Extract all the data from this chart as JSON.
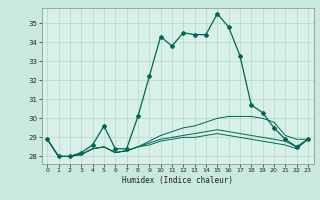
{
  "title": "",
  "xlabel": "Humidex (Indice chaleur)",
  "ylabel": "",
  "background_color": "#c8e8e0",
  "plot_bg_color": "#d8f0e8",
  "grid_color": "#b0d8cc",
  "line_color": "#006655",
  "xlim": [
    -0.5,
    23.5
  ],
  "ylim": [
    27.6,
    35.8
  ],
  "yticks": [
    28,
    29,
    30,
    31,
    32,
    33,
    34,
    35
  ],
  "xticks": [
    0,
    1,
    2,
    3,
    4,
    5,
    6,
    7,
    8,
    9,
    10,
    11,
    12,
    13,
    14,
    15,
    16,
    17,
    18,
    19,
    20,
    21,
    22,
    23
  ],
  "series": [
    [
      28.9,
      28.0,
      28.0,
      28.2,
      28.6,
      29.6,
      28.4,
      28.4,
      30.1,
      32.2,
      34.3,
      33.8,
      34.5,
      34.4,
      34.4,
      35.5,
      34.8,
      33.3,
      30.7,
      30.3,
      29.5,
      28.9,
      28.5,
      28.9
    ],
    [
      28.9,
      28.0,
      28.0,
      28.1,
      28.4,
      28.5,
      28.2,
      28.3,
      28.5,
      28.8,
      29.1,
      29.3,
      29.5,
      29.6,
      29.8,
      30.0,
      30.1,
      30.1,
      30.1,
      30.0,
      29.8,
      29.1,
      28.9,
      28.9
    ],
    [
      28.9,
      28.0,
      28.0,
      28.1,
      28.4,
      28.5,
      28.2,
      28.3,
      28.5,
      28.7,
      28.9,
      29.0,
      29.1,
      29.2,
      29.3,
      29.4,
      29.3,
      29.2,
      29.1,
      29.0,
      28.9,
      28.8,
      28.5,
      28.9
    ],
    [
      28.9,
      28.0,
      28.0,
      28.1,
      28.4,
      28.5,
      28.2,
      28.3,
      28.5,
      28.6,
      28.8,
      28.9,
      29.0,
      29.0,
      29.1,
      29.2,
      29.1,
      29.0,
      28.9,
      28.8,
      28.7,
      28.6,
      28.4,
      28.9
    ]
  ]
}
